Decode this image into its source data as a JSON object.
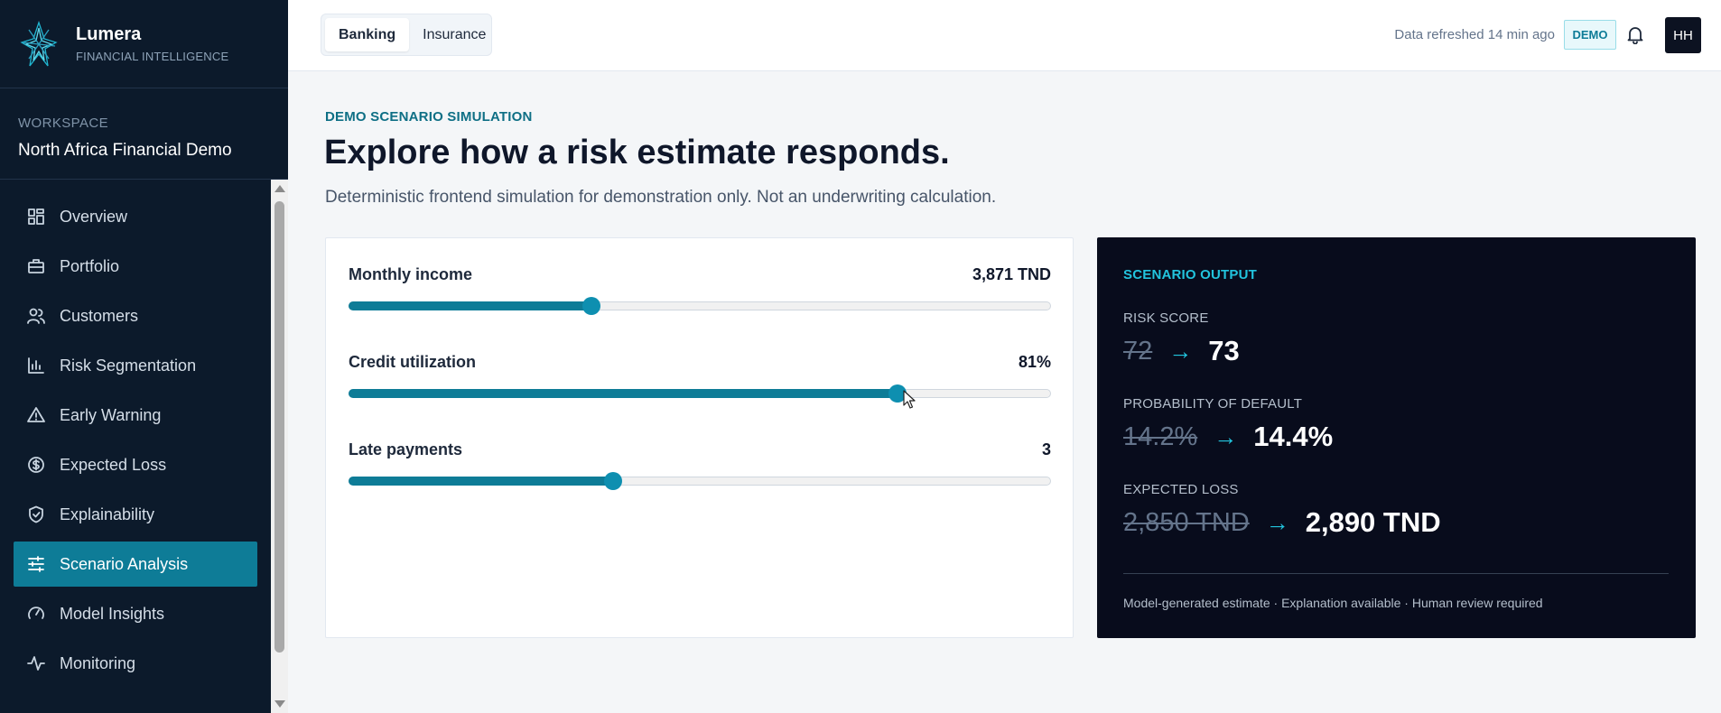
{
  "brand": {
    "name": "Lumera",
    "subtitle": "FINANCIAL INTELLIGENCE"
  },
  "workspace": {
    "label": "WORKSPACE",
    "name": "North Africa Financial Demo"
  },
  "sidebar": {
    "items": [
      {
        "label": "Overview",
        "icon": "grid-icon"
      },
      {
        "label": "Portfolio",
        "icon": "briefcase-icon"
      },
      {
        "label": "Customers",
        "icon": "users-icon"
      },
      {
        "label": "Risk Segmentation",
        "icon": "bar-chart-icon"
      },
      {
        "label": "Early Warning",
        "icon": "warning-triangle-icon"
      },
      {
        "label": "Expected Loss",
        "icon": "dollar-circle-icon"
      },
      {
        "label": "Explainability",
        "icon": "shield-check-icon"
      },
      {
        "label": "Scenario Analysis",
        "icon": "sliders-icon",
        "active": true
      },
      {
        "label": "Model Insights",
        "icon": "gauge-icon"
      },
      {
        "label": "Monitoring",
        "icon": "activity-icon"
      }
    ]
  },
  "header": {
    "tabs": [
      {
        "label": "Banking",
        "active": true
      },
      {
        "label": "Insurance",
        "active": false
      }
    ],
    "refresh_text": "Data refreshed 14 min ago",
    "demo_badge": "DEMO",
    "avatar_initials": "HH"
  },
  "main": {
    "eyebrow": "DEMO SCENARIO SIMULATION",
    "title": "Explore how a risk estimate responds.",
    "subtitle": "Deterministic frontend simulation for demonstration only. Not an underwriting calculation."
  },
  "controls": {
    "monthly_income": {
      "label": "Monthly income",
      "value": "3,871 TND",
      "fraction": 0.346
    },
    "credit_utilization": {
      "label": "Credit utilization",
      "value": "81%",
      "fraction": 0.782
    },
    "late_payments": {
      "label": "Late payments",
      "value": "3",
      "fraction": 0.376
    }
  },
  "output": {
    "heading": "SCENARIO OUTPUT",
    "risk_score": {
      "label": "RISK SCORE",
      "old": "72",
      "arrow": "→",
      "new": "73"
    },
    "probability_default": {
      "label": "PROBABILITY OF DEFAULT",
      "old": "14.2%",
      "arrow": "→",
      "new": "14.4%"
    },
    "expected_loss": {
      "label": "EXPECTED LOSS",
      "old": "2,850 TND",
      "arrow": "→",
      "new": "2,890 TND"
    },
    "footnote": "Model-generated estimate · Explanation available · Human review required"
  },
  "colors": {
    "accent": "#0e7c97",
    "sidebar_bg": "#0c1a2b",
    "output_bg": "#080c1c",
    "highlight": "#22c4dd"
  }
}
